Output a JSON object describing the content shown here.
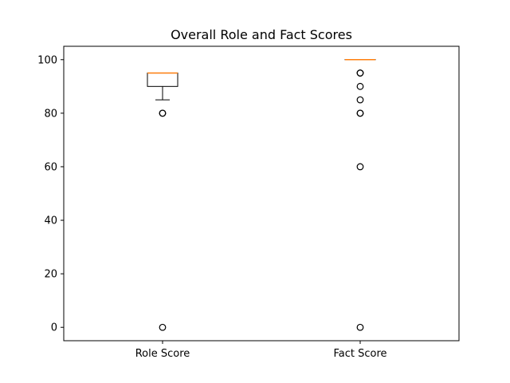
{
  "chart_data": {
    "type": "box",
    "title": "Overall Role and Fact Scores",
    "xlabel": "",
    "ylabel": "",
    "ylim": [
      -5,
      105
    ],
    "yticks": [
      0,
      20,
      40,
      60,
      80,
      100
    ],
    "categories": [
      "Role Score",
      "Fact Score"
    ],
    "boxes": [
      {
        "category": "Role Score",
        "whisker_low": 85,
        "q1": 90,
        "median": 95,
        "q3": 95,
        "whisker_high": 95,
        "outliers": [
          80,
          80,
          0
        ]
      },
      {
        "category": "Fact Score",
        "whisker_low": 100,
        "q1": 100,
        "median": 100,
        "q3": 100,
        "whisker_high": 100,
        "outliers": [
          95,
          95,
          90,
          85,
          80,
          80,
          60,
          0
        ]
      }
    ],
    "colors": {
      "box": "#000000",
      "median": "#ff7f0e",
      "frame": "#000000"
    },
    "grid": false,
    "legend": "none"
  }
}
